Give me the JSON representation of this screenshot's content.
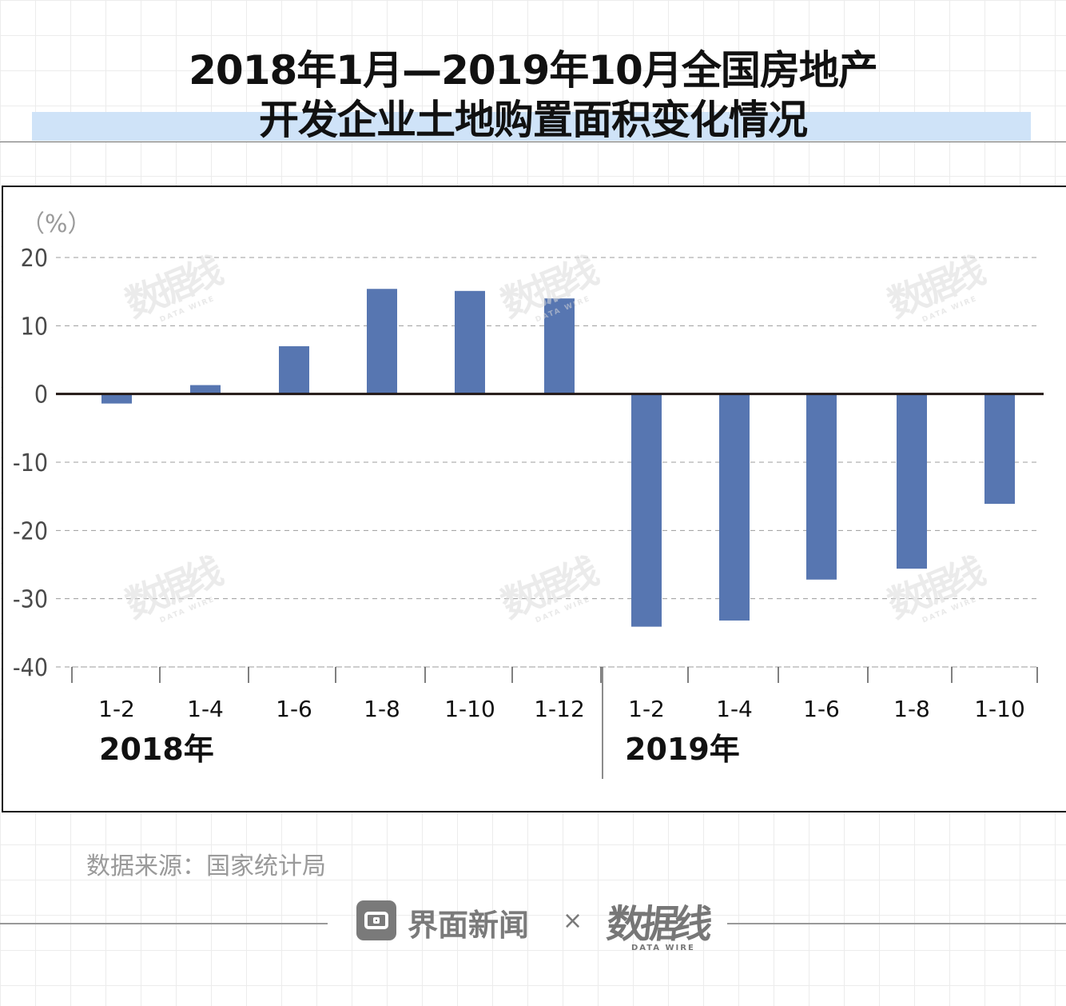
{
  "title": {
    "line1": "2018年1月—2019年10月全国房地产",
    "line2": "开发企业土地购置面积变化情况"
  },
  "chart_data": {
    "type": "bar",
    "unit_label": "（%）",
    "ylim": [
      -40,
      20
    ],
    "yticks": [
      "20",
      "10",
      "0",
      "-10",
      "-20",
      "-30",
      "-40"
    ],
    "categories": [
      "1-2",
      "1-4",
      "1-6",
      "1-8",
      "1-10",
      "1-12",
      "1-2",
      "1-4",
      "1-6",
      "1-8",
      "1-10"
    ],
    "values": [
      -1.4,
      1.3,
      7.0,
      15.4,
      15.1,
      14.0,
      -34.1,
      -33.2,
      -27.2,
      -25.6,
      -16.1
    ],
    "groups": [
      {
        "label": "2018年",
        "count": 6
      },
      {
        "label": "2019年",
        "count": 5
      }
    ],
    "bar_color": "#5776b1",
    "grid": true
  },
  "watermark": {
    "main": "数据线",
    "sub": "DATA WIRE"
  },
  "footer": {
    "source": "数据来源：国家统计局",
    "brand": "界面新闻",
    "times": "×",
    "logo_main": "数据线",
    "logo_sub": "DATA WIRE"
  }
}
